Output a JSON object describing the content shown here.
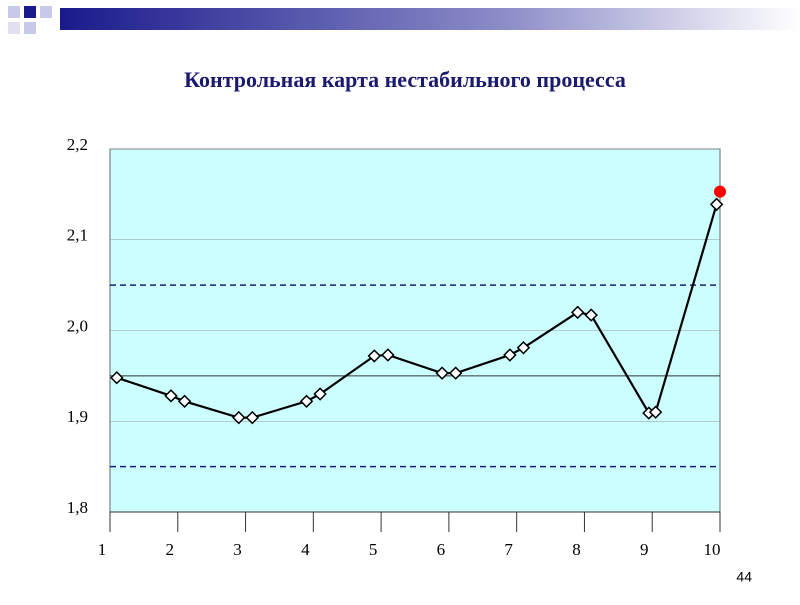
{
  "chart_data": {
    "type": "line",
    "title": "Контрольная карта нестабильного процесса",
    "x": [
      1.1,
      1.9,
      2.1,
      2.9,
      3.1,
      3.9,
      4.1,
      4.9,
      5.1,
      5.9,
      6.1,
      6.9,
      7.1,
      7.9,
      8.1,
      8.95,
      9.05,
      9.95
    ],
    "values": [
      1.948,
      1.928,
      1.922,
      1.904,
      1.904,
      1.922,
      1.93,
      1.972,
      1.973,
      1.953,
      1.953,
      1.973,
      1.981,
      2.02,
      2.017,
      1.909,
      1.91,
      2.139
    ],
    "color": "#000000",
    "xlim": [
      1,
      10
    ],
    "xticks": [
      1,
      2,
      3,
      4,
      5,
      6,
      7,
      8,
      9,
      10
    ],
    "ylim": [
      1.8,
      2.2
    ],
    "yticks": [
      {
        "value": 1.8,
        "label": "1,8"
      },
      {
        "value": 1.9,
        "label": "1,9"
      },
      {
        "value": 2.0,
        "label": "2,0"
      },
      {
        "value": 2.1,
        "label": "2,1"
      },
      {
        "value": 2.2,
        "label": "2,2"
      }
    ],
    "grid": true,
    "background": "#ccffff",
    "reference_lines": [
      {
        "value": 2.05,
        "style": "dashed",
        "color": "#1a1a7a"
      },
      {
        "value": 1.95,
        "style": "solid",
        "color": "#333333"
      },
      {
        "value": 1.85,
        "style": "dashed",
        "color": "#1a1a7a"
      }
    ],
    "highlight_points": {
      "x": [
        10
      ],
      "values": [
        2.153
      ],
      "color": "#ff0000"
    }
  },
  "page_number": "44"
}
